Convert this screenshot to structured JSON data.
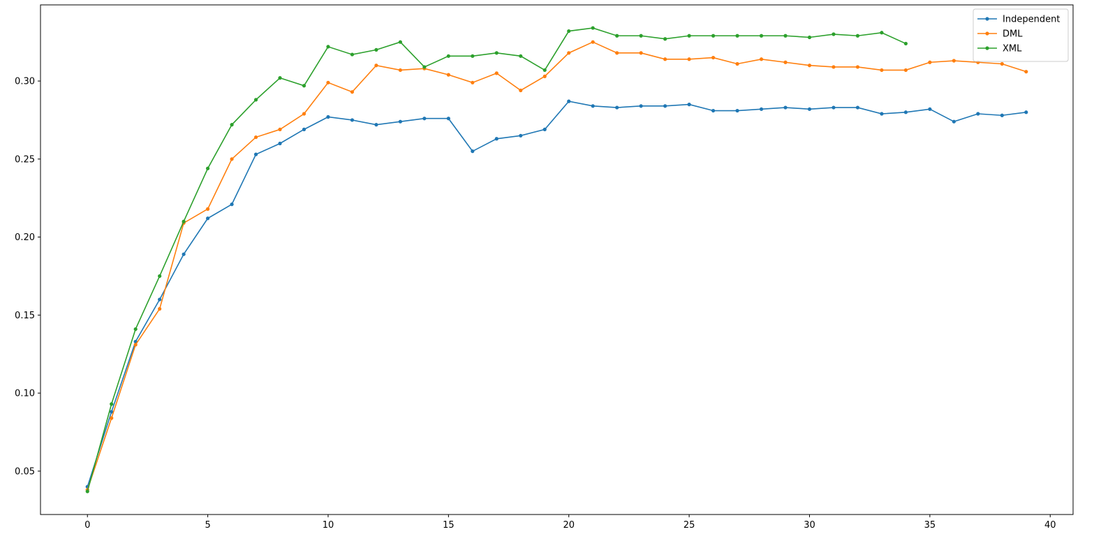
{
  "chart_data": {
    "type": "line",
    "x": [
      0,
      1,
      2,
      3,
      4,
      5,
      6,
      7,
      8,
      9,
      10,
      11,
      12,
      13,
      14,
      15,
      16,
      17,
      18,
      19,
      20,
      21,
      22,
      23,
      24,
      25,
      26,
      27,
      28,
      29,
      30,
      31,
      32,
      33,
      34,
      35,
      36,
      37,
      38,
      39
    ],
    "series": [
      {
        "name": "Independent",
        "color": "#1f77b4",
        "values": [
          0.04,
          0.088,
          0.133,
          0.16,
          0.189,
          0.212,
          0.221,
          0.253,
          0.26,
          0.269,
          0.277,
          0.275,
          0.272,
          0.274,
          0.276,
          0.276,
          0.255,
          0.263,
          0.265,
          0.269,
          0.287,
          0.284,
          0.283,
          0.284,
          0.284,
          0.285,
          0.281,
          0.281,
          0.282,
          0.283,
          0.282,
          0.283,
          0.283,
          0.279,
          0.28,
          0.282,
          0.274,
          0.279,
          0.278,
          0.28
        ]
      },
      {
        "name": "DML",
        "color": "#ff7f0e",
        "values": [
          0.038,
          0.084,
          0.131,
          0.154,
          0.209,
          0.218,
          0.25,
          0.264,
          0.269,
          0.279,
          0.299,
          0.293,
          0.31,
          0.307,
          0.308,
          0.304,
          0.299,
          0.305,
          0.294,
          0.303,
          0.318,
          0.325,
          0.318,
          0.318,
          0.314,
          0.314,
          0.315,
          0.311,
          0.314,
          0.312,
          0.31,
          0.309,
          0.309,
          0.307,
          0.307,
          0.312,
          0.313,
          0.312,
          0.311,
          0.306
        ]
      },
      {
        "name": "XML",
        "color": "#2ca02c",
        "values": [
          0.037,
          0.093,
          0.141,
          0.175,
          0.21,
          0.244,
          0.272,
          0.288,
          0.302,
          0.297,
          0.322,
          0.317,
          0.32,
          0.325,
          0.309,
          0.316,
          0.316,
          0.318,
          0.316,
          0.307,
          0.332,
          0.334,
          0.329,
          0.329,
          0.327,
          0.329,
          0.329,
          0.329,
          0.329,
          0.329,
          0.328,
          0.33,
          0.329,
          0.331,
          0.324,
          null,
          null,
          null,
          null,
          null
        ]
      }
    ],
    "xlim": [
      -1.95,
      40.95
    ],
    "xticks": [
      0,
      5,
      10,
      15,
      20,
      25,
      30,
      35,
      40
    ],
    "ylim": [
      0.0222,
      0.3488
    ],
    "yticks": [
      0.05,
      {
        "value": 0.1,
        "label": "0.10"
      },
      0.15,
      {
        "value": 0.2,
        "label": "0.20"
      },
      0.25,
      {
        "value": 0.3,
        "label": "0.30"
      }
    ],
    "legend": "upper right"
  }
}
